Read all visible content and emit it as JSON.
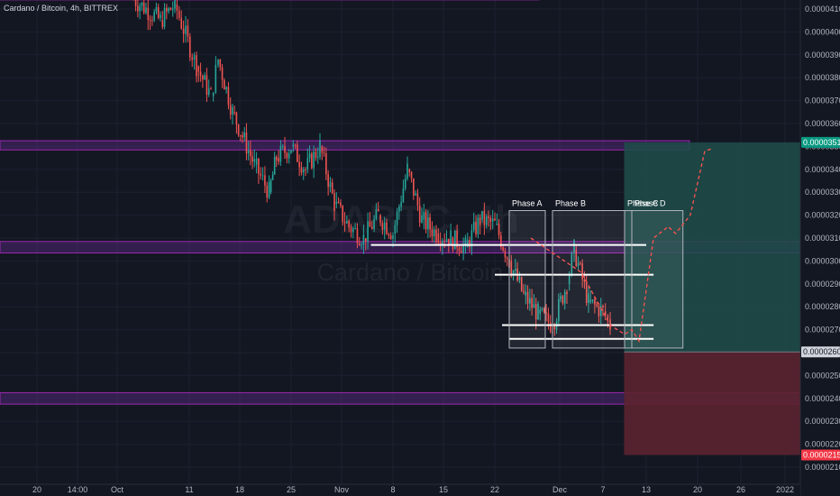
{
  "header": {
    "symbol_title": "Cardano / Bitcoin, 4h, BITTREX"
  },
  "watermark": {
    "ticker": "ADABTC, 4h",
    "name": "Cardano / Bitcoin"
  },
  "colors": {
    "background": "#131722",
    "up_candle": "#26a69a",
    "down_candle": "#ef5350",
    "zone_fill": "#5b2a86",
    "zone_border": "#9c27b0",
    "target_fill": "#1f4d4a",
    "stop_fill": "#5c2430",
    "phase_border": "#b2b5be",
    "projection": "#ef5350",
    "last_price_bg": "#131722",
    "target_badge": "#089981",
    "stop_badge": "#f23645"
  },
  "chart_data": {
    "type": "candlestick",
    "timeframe": "4h",
    "y_unit": "BTC",
    "ylim": [
      2.03e-05,
      4.18e-05
    ],
    "x_ticks": [
      "20",
      "14:00",
      "Oct",
      "11",
      "18",
      "25",
      "Nov",
      "8",
      "15",
      "22",
      "Dec",
      "7",
      "13",
      "20",
      "26",
      "2022"
    ],
    "y_ticks": [
      "0.00004100",
      "0.00004000",
      "0.00003900",
      "0.00003800",
      "0.00003700",
      "0.00003600",
      "0.00003500",
      "0.00003400",
      "0.00003300",
      "0.00003200",
      "0.00003100",
      "0.00003000",
      "0.00002900",
      "0.00002800",
      "0.00002700",
      "0.00002600",
      "0.00002500",
      "0.00002400",
      "0.00002300",
      "0.00002200",
      "0.00002100"
    ],
    "y_top_label": "0.00004100 BTC",
    "price_path": [
      {
        "date": "Oct 03",
        "price": 4.15e-05
      },
      {
        "date": "Oct 07",
        "price": 4.05e-05
      },
      {
        "date": "Oct 09",
        "price": 4.12e-05
      },
      {
        "date": "Oct 12",
        "price": 3.85e-05
      },
      {
        "date": "Oct 14",
        "price": 3.72e-05
      },
      {
        "date": "Oct 15",
        "price": 3.88e-05
      },
      {
        "date": "Oct 17",
        "price": 3.65e-05
      },
      {
        "date": "Oct 20",
        "price": 3.42e-05
      },
      {
        "date": "Oct 22",
        "price": 3.3e-05
      },
      {
        "date": "Oct 23",
        "price": 3.45e-05
      },
      {
        "date": "Oct 25",
        "price": 3.5e-05
      },
      {
        "date": "Oct 27",
        "price": 3.4e-05
      },
      {
        "date": "Oct 29",
        "price": 3.5e-05
      },
      {
        "date": "Oct 31",
        "price": 3.25e-05
      },
      {
        "date": "Nov 02",
        "price": 3.15e-05
      },
      {
        "date": "Nov 04",
        "price": 3.1e-05
      },
      {
        "date": "Nov 06",
        "price": 3.2e-05
      },
      {
        "date": "Nov 08",
        "price": 3.12e-05
      },
      {
        "date": "Nov 10",
        "price": 3.4e-05
      },
      {
        "date": "Nov 12",
        "price": 3.18e-05
      },
      {
        "date": "Nov 14",
        "price": 3.12e-05
      },
      {
        "date": "Nov 16",
        "price": 3.1e-05
      },
      {
        "date": "Nov 18",
        "price": 3.06e-05
      },
      {
        "date": "Nov 20",
        "price": 3.18e-05
      },
      {
        "date": "Nov 22",
        "price": 3.16e-05
      },
      {
        "date": "Nov 24",
        "price": 3e-05
      },
      {
        "date": "Nov 26",
        "price": 2.85e-05
      },
      {
        "date": "Nov 28",
        "price": 2.77e-05
      },
      {
        "date": "Nov 30",
        "price": 2.72e-05
      },
      {
        "date": "Dec 02",
        "price": 2.9e-05
      },
      {
        "date": "Dec 03",
        "price": 3.05e-05
      },
      {
        "date": "Dec 05",
        "price": 2.82e-05
      },
      {
        "date": "Dec 07",
        "price": 2.78e-05
      },
      {
        "date": "Dec 08",
        "price": 2.72e-05
      }
    ],
    "zones": [
      {
        "from": 4.14e-05,
        "to": 4.18e-05
      },
      {
        "from": 3.485e-05,
        "to": 3.525e-05
      },
      {
        "from": 3.035e-05,
        "to": 3.085e-05
      },
      {
        "from": 2.375e-05,
        "to": 2.425e-05
      }
    ],
    "support_resistance_lines": [
      {
        "price": 3.07e-05,
        "from": "Nov 05",
        "to": "Dec 13"
      },
      {
        "price": 2.94e-05,
        "from": "Nov 22",
        "to": "Dec 14"
      },
      {
        "price": 2.72e-05,
        "from": "Nov 23",
        "to": "Dec 14"
      },
      {
        "price": 2.66e-05,
        "from": "Nov 24",
        "to": "Dec 14"
      }
    ],
    "phases": [
      {
        "label": "Phase A",
        "from": "Nov 24",
        "to": "Nov 29",
        "top": 3.22e-05,
        "bottom": 2.62e-05
      },
      {
        "label": "Phase B",
        "from": "Nov 30",
        "to": "Dec 10",
        "top": 3.22e-05,
        "bottom": 2.62e-05
      },
      {
        "label": "Phase C",
        "from": "Dec 10",
        "to": "Dec 11",
        "top": 3.22e-05,
        "bottom": 2.62e-05
      },
      {
        "label": "Phase D",
        "from": "Dec 11",
        "to": "Dec 18",
        "top": 3.22e-05,
        "bottom": 2.62e-05
      }
    ],
    "projection": [
      {
        "date": "Nov 27",
        "price": 3.1e-05
      },
      {
        "date": "Dec 04",
        "price": 2.95e-05
      },
      {
        "date": "Dec 08",
        "price": 2.72e-05
      },
      {
        "date": "Dec 10",
        "price": 2.68e-05
      },
      {
        "date": "Dec 11",
        "price": 2.7e-05
      },
      {
        "date": "Dec 12",
        "price": 2.65e-05
      },
      {
        "date": "Dec 14",
        "price": 3.1e-05
      },
      {
        "date": "Dec 16",
        "price": 3.15e-05
      },
      {
        "date": "Dec 17",
        "price": 3.12e-05
      },
      {
        "date": "Dec 19",
        "price": 3.2e-05
      },
      {
        "date": "Dec 21",
        "price": 3.48e-05
      },
      {
        "date": "Dec 22",
        "price": 3.49e-05
      }
    ],
    "position": {
      "entry": 2.603e-05,
      "target": 3.518e-05,
      "stop": 2.153e-05,
      "from": "Dec 13",
      "to": "2022"
    },
    "price_badges": [
      {
        "value": "0.00003518",
        "kind": "target"
      },
      {
        "value": "0.00002603",
        "kind": "entry"
      },
      {
        "value": "0.00002153",
        "kind": "stop"
      }
    ]
  }
}
